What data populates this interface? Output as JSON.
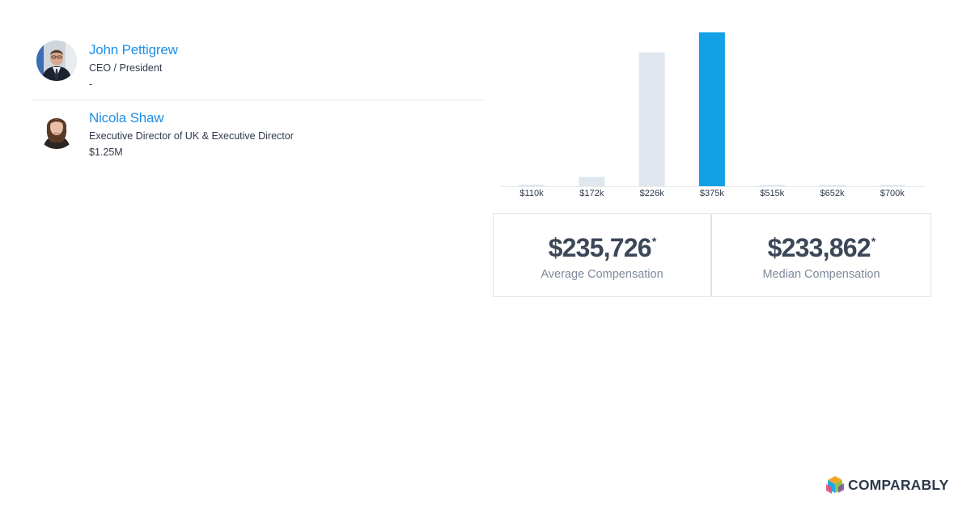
{
  "people": [
    {
      "name": "John Pettigrew",
      "title": "CEO / President",
      "compensation": "-"
    },
    {
      "name": "Nicola Shaw",
      "title": "Executive Director of UK & Executive Director",
      "compensation": "$1.25M"
    }
  ],
  "chart_data": {
    "type": "bar",
    "categories": [
      "$110k",
      "$172k",
      "$226k",
      "$375k",
      "$515k",
      "$652k",
      "$700k"
    ],
    "values": [
      1,
      6,
      87,
      100,
      0,
      0,
      0
    ],
    "highlight_index": 3,
    "colors": {
      "bar": "#dfe6ee",
      "highlight": "#13a0e5"
    }
  },
  "stats": {
    "average": {
      "value": "$235,726",
      "marker": "*",
      "label": "Average Compensation"
    },
    "median": {
      "value": "$233,862",
      "marker": "*",
      "label": "Median Compensation"
    }
  },
  "brand": {
    "name": "COMPARABLY",
    "icon": "comparably-logo-icon"
  },
  "colors": {
    "link": "#1e8fe6",
    "text": "#2f3a4a",
    "muted": "#7d8a9a"
  }
}
